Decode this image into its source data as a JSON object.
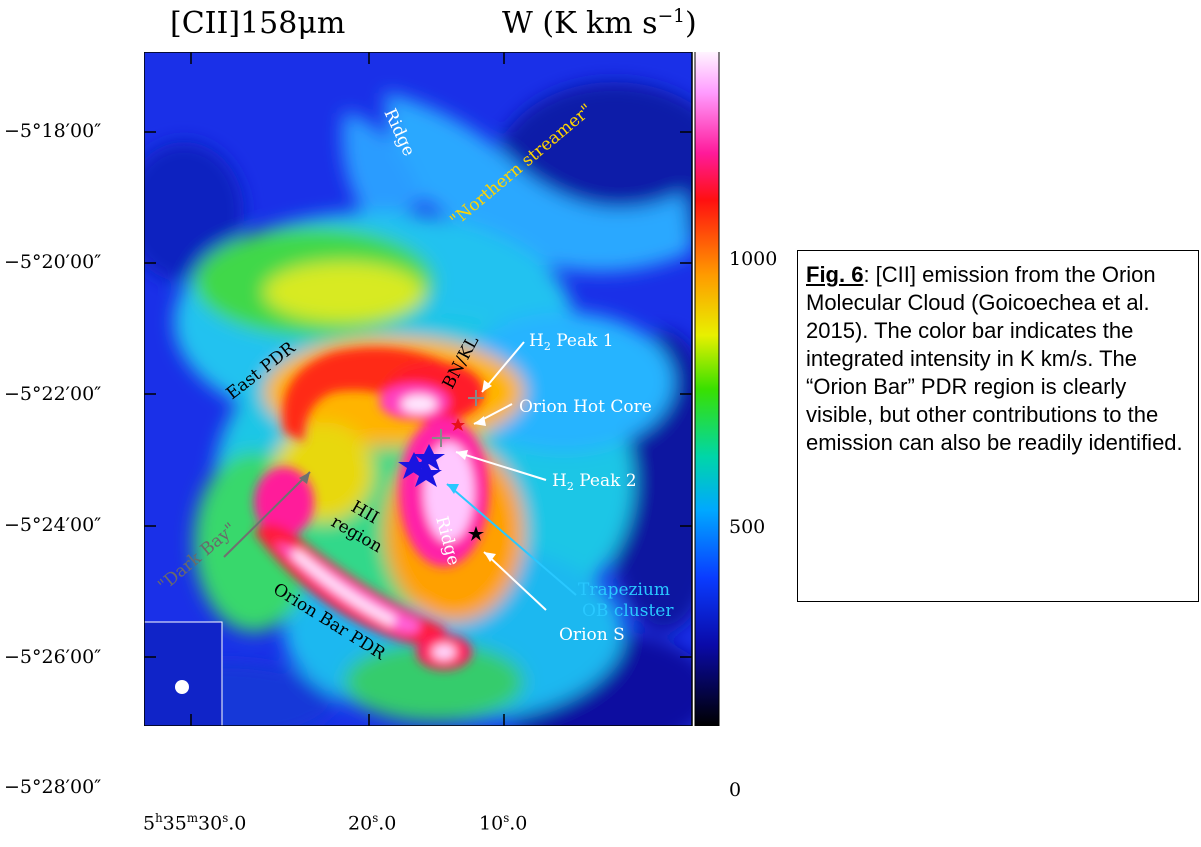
{
  "figure": {
    "title_left": "[CII]158μm",
    "title_right": "W (K km s",
    "title_right_exp": "−1",
    "title_right_close": ")",
    "y_ticks": [
      "−5°18′00″",
      "−5°20′00″",
      "−5°22′00″",
      "−5°24′00″",
      "−5°26′00″",
      "−5°28′00″"
    ],
    "x_ticks": [
      {
        "main": "5",
        "sup1": "h",
        "mid": "35",
        "sup2": "m",
        "tail": "30",
        "sup3": "s",
        "end": ".0"
      },
      {
        "main": "20",
        "sup3": "s",
        "end": ".0"
      },
      {
        "main": "10",
        "sup3": "s",
        "end": ".0"
      }
    ],
    "colorbar": {
      "ticks": [
        "1000",
        "500",
        "0"
      ],
      "range": [
        0,
        1300
      ]
    },
    "annotations": {
      "ridge_north": "Ridge",
      "northern_streamer": "\"Northern streamer\"",
      "east_pdr": "East PDR",
      "bn_kl": "BN/KL",
      "h2_peak1": "H",
      "h2_peak1_sub": "2",
      "h2_peak1_tail": " Peak 1",
      "orion_hot_core": "Orion Hot Core",
      "h2_peak2": "H",
      "h2_peak2_sub": "2",
      "h2_peak2_tail": " Peak 2",
      "hii_region_1": "HII",
      "hii_region_2": "region",
      "dark_bay": "\"Dark Bay\"",
      "ridge_south": "Ridge",
      "trapezium_1": "Trapezium",
      "trapezium_2": "OB cluster",
      "orion_s": "Orion S",
      "orion_bar_pdr": "Orion Bar PDR"
    },
    "colors": {
      "streamer_label": "#ffd400",
      "trapezium_label": "#29c8ff",
      "arrow_white": "#ffffff",
      "arrow_gray": "#8a8a8a",
      "trapezium_stars": "#1a14e0",
      "hot_core_star": "#e8101a",
      "orion_s_star": "#000000"
    }
  },
  "caption": {
    "label": "Fig. 6",
    "text": ":  [CII] emission from the Orion Molecular Cloud (Goicoechea et al. 2015). The color bar indicates the integrated intensity in K km/s. The “Orion Bar” PDR region is clearly visible, but other contributions to the emission can also be readily identified."
  }
}
